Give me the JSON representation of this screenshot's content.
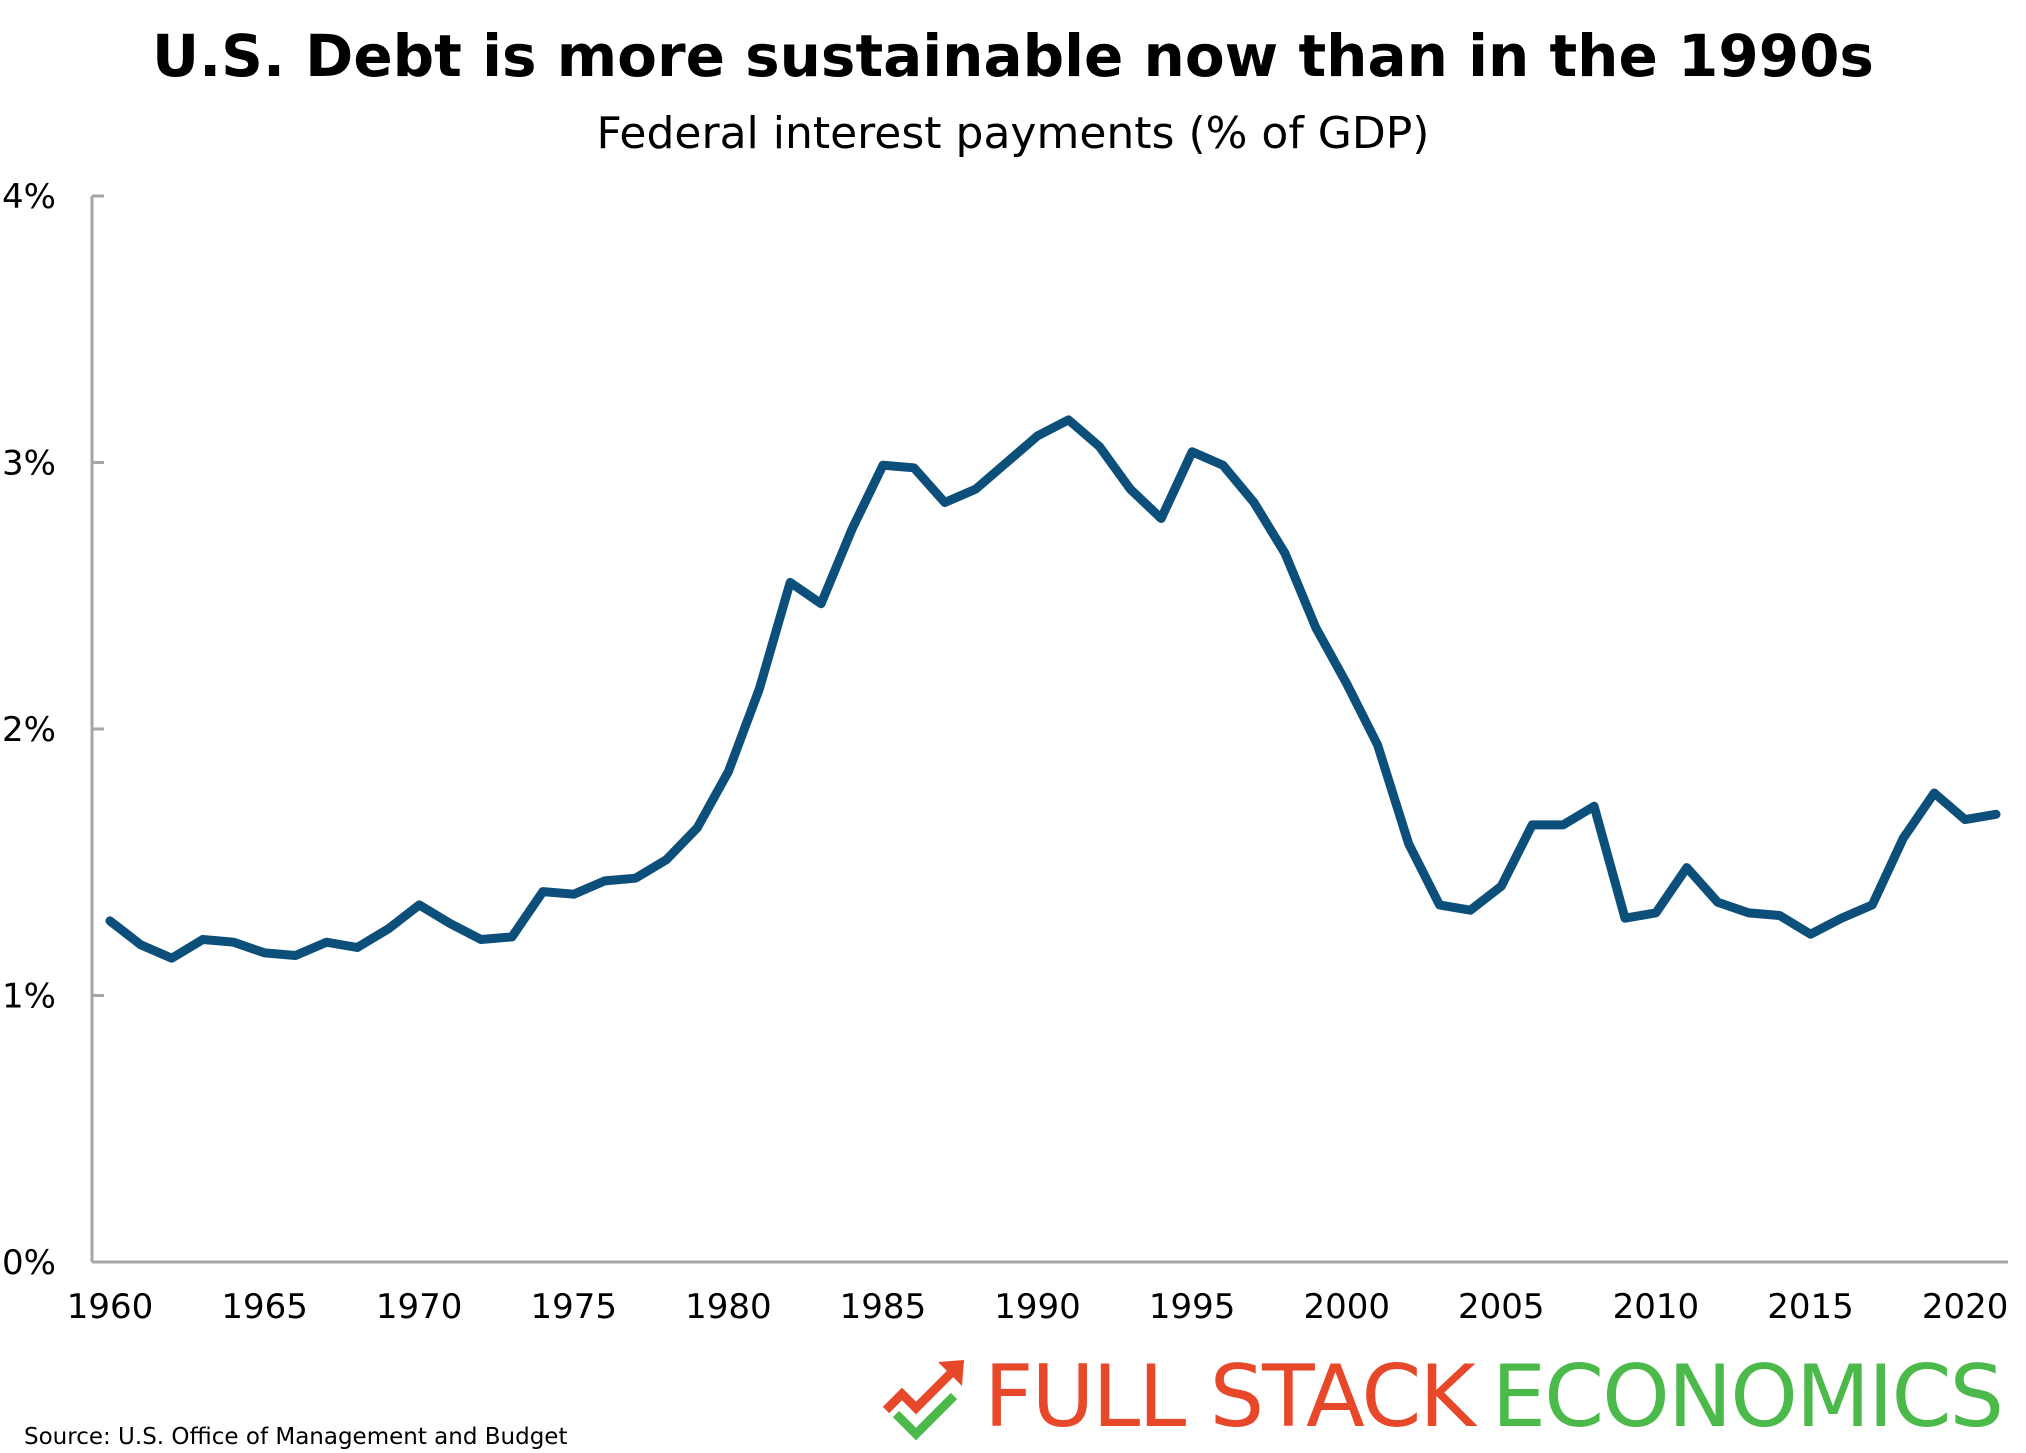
{
  "title": "U.S. Debt is more sustainable now than in the 1990s",
  "subtitle": "Federal interest payments (% of GDP)",
  "source": "Source: U.S. Office of Management and Budget",
  "brand": {
    "word1": "FULL STACK",
    "word2": "ECONOMICS",
    "icon": "trend-arrow-check-icon",
    "colors": {
      "word1": "#e8482a",
      "word2": "#4cb94b"
    }
  },
  "chart_data": {
    "type": "line",
    "title": "U.S. Debt is more sustainable now than in the 1990s",
    "subtitle": "Federal interest payments (% of GDP)",
    "xlabel": "",
    "ylabel": "",
    "xlim": [
      1960,
      2021
    ],
    "ylim": [
      0,
      4
    ],
    "x_ticks": [
      1960,
      1965,
      1970,
      1975,
      1980,
      1985,
      1990,
      1995,
      2000,
      2005,
      2010,
      2015,
      2020
    ],
    "y_ticks": [
      0,
      1,
      2,
      3,
      4
    ],
    "y_tick_labels": [
      "0%",
      "1%",
      "2%",
      "3%",
      "4%"
    ],
    "grid": false,
    "legend": "none",
    "line_color": "#0b4f7a",
    "series": [
      {
        "x": [
          1960,
          1961,
          1962,
          1963,
          1964,
          1965,
          1966,
          1967,
          1968,
          1969,
          1970,
          1971,
          1972,
          1973,
          1974,
          1975,
          1976,
          1977,
          1978,
          1979,
          1980,
          1981,
          1982,
          1983,
          1984,
          1985,
          1986,
          1987,
          1988,
          1989,
          1990,
          1991,
          1992,
          1993,
          1994,
          1995,
          1996,
          1997,
          1998,
          1999,
          2000,
          2001,
          2002,
          2003,
          2004,
          2005,
          2006,
          2007,
          2008,
          2009,
          2010,
          2011,
          2012,
          2013,
          2014,
          2015,
          2016,
          2017,
          2018,
          2019,
          2020,
          2021
        ],
        "values": [
          1.28,
          1.19,
          1.14,
          1.21,
          1.2,
          1.16,
          1.15,
          1.2,
          1.18,
          1.25,
          1.34,
          1.27,
          1.21,
          1.22,
          1.39,
          1.38,
          1.43,
          1.44,
          1.51,
          1.63,
          1.84,
          2.15,
          2.55,
          2.47,
          2.75,
          2.99,
          2.98,
          2.85,
          2.9,
          3.0,
          3.1,
          3.16,
          3.06,
          2.9,
          2.79,
          3.04,
          2.99,
          2.85,
          2.66,
          2.38,
          2.17,
          1.94,
          1.57,
          1.34,
          1.32,
          1.41,
          1.64,
          1.64,
          1.71,
          1.29,
          1.31,
          1.48,
          1.35,
          1.31,
          1.3,
          1.23,
          1.29,
          1.34,
          1.59,
          1.76,
          1.66,
          1.68
        ]
      }
    ]
  }
}
